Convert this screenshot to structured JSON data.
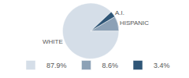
{
  "chart_data": {
    "type": "pie",
    "categories": [
      "WHITE",
      "HISPANIC",
      "A.I."
    ],
    "values": [
      87.9,
      8.6,
      3.4
    ],
    "value_labels": [
      "87.9%",
      "8.6%",
      "3.4%"
    ],
    "colors": [
      "#d5dee8",
      "#8ca1b6",
      "#2f5677"
    ],
    "legend": "bottom"
  }
}
